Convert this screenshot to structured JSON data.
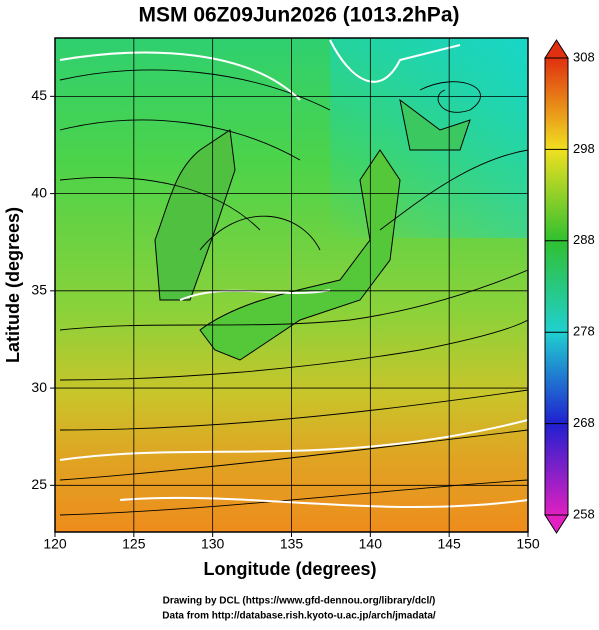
{
  "title": "MSM 06Z09Jun2026 (1013.2hPa)",
  "xlabel": "Longitude (degrees)",
  "ylabel": "Latitude  (degrees)",
  "xlim": [
    120,
    150
  ],
  "xticks": [
    120,
    125,
    130,
    135,
    140,
    145,
    150
  ],
  "ylim": [
    22.6,
    48
  ],
  "yticks": [
    25,
    30,
    35,
    40,
    45
  ],
  "colorbar": {
    "lim": [
      258,
      308
    ],
    "ticks": [
      258,
      268,
      278,
      288,
      298,
      308
    ]
  },
  "credits": [
    "Drawing by DCL (https://www.gfd-dennou.org/library/dcl/)",
    "Data from http://database.rish.kyoto-u.ac.jp/arch/jmadata/"
  ]
}
